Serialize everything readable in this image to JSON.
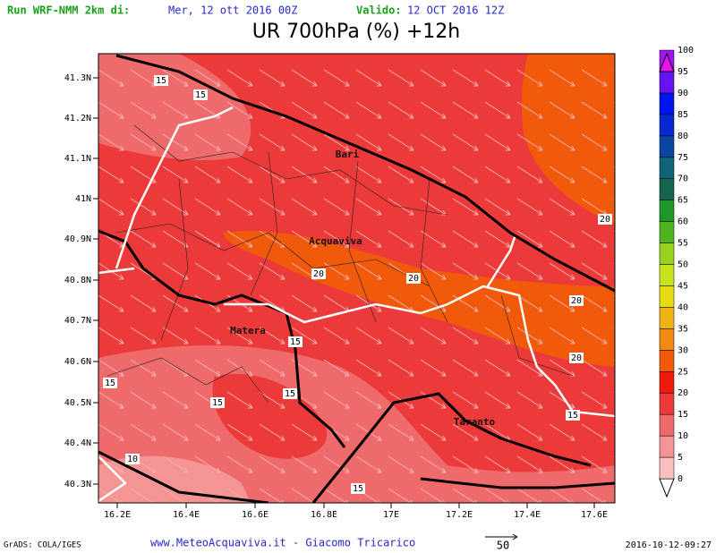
{
  "header": {
    "run_label": "Run WRF-NMM 2km di:",
    "run_date": "Mer, 12 ott 2016 00Z",
    "valid_label": "Valido:",
    "valid_date": "12 OCT 2016 12Z",
    "title": "UR 700hPa (%) +12h"
  },
  "map": {
    "lat_ticks": [
      "41.3N",
      "41.2N",
      "41.1N",
      "41N",
      "40.9N",
      "40.8N",
      "40.7N",
      "40.6N",
      "40.5N",
      "40.4N",
      "40.3N"
    ],
    "lon_ticks": [
      "16.2E",
      "16.4E",
      "16.6E",
      "16.8E",
      "17E",
      "17.2E",
      "17.4E",
      "17.6E"
    ],
    "cities": [
      "Bari",
      "Acquaviva",
      "Matera",
      "Taranto"
    ],
    "contour_labels": [
      "15",
      "15",
      "20",
      "20",
      "20",
      "20",
      "20",
      "15",
      "15",
      "15",
      "15",
      "15",
      "10",
      "15"
    ]
  },
  "colorbar": {
    "levels": [
      0,
      5,
      10,
      15,
      20,
      25,
      30,
      35,
      40,
      45,
      50,
      55,
      60,
      65,
      70,
      75,
      80,
      85,
      90,
      95,
      100
    ],
    "colors": [
      "#f9c0c0",
      "#f49494",
      "#ef6a6a",
      "#ec3a3a",
      "#f01a0a",
      "#f05a0a",
      "#f08a10",
      "#f0b418",
      "#e8dc10",
      "#c8e41e",
      "#96d21e",
      "#50b41e",
      "#1e9628",
      "#146450",
      "#106478",
      "#0a46a0",
      "#0a28d2",
      "#0014f0",
      "#6414f0",
      "#a014f0",
      "#e614f0"
    ]
  },
  "footer": {
    "grads": "GrADS: COLA/IGES",
    "site": "www.MeteoAcquaviva.it - Giacomo Tricarico",
    "vector_scale": "50",
    "timestamp": "2016-10-12-09:27"
  }
}
